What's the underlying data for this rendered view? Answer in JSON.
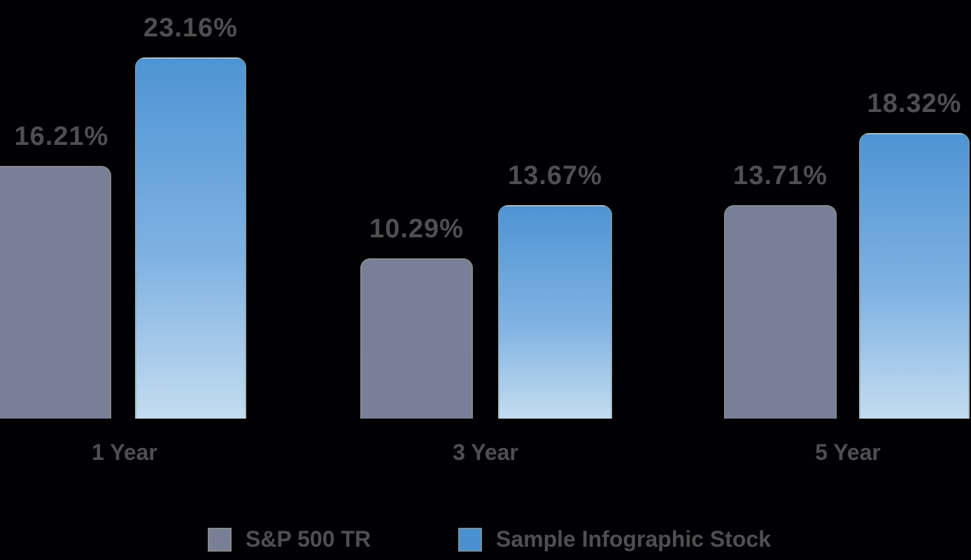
{
  "chart_data": {
    "type": "bar",
    "title": "",
    "xlabel": "",
    "ylabel": "",
    "categories": [
      "1 Year",
      "3 Year",
      "5 Year"
    ],
    "series": [
      {
        "name": "S&P 500 TR",
        "color": "#797F97",
        "values": [
          16.21,
          10.29,
          13.71
        ],
        "labels": [
          "16.21%",
          "10.29%",
          "13.71%"
        ]
      },
      {
        "name": "Sample Infographic Stock",
        "color_top": "#4E94D4",
        "color_bottom": "#C3DCF0",
        "values": [
          23.16,
          13.67,
          18.32
        ],
        "labels": [
          "23.16%",
          "13.67%",
          "18.32%"
        ]
      }
    ],
    "ylim": [
      0,
      25
    ],
    "grid": false,
    "axis_lines": false,
    "legend_position": "bottom",
    "value_labels_shown": true,
    "value_label_color": "#4F4F51",
    "background_color": "#010104"
  },
  "legend": {
    "items": [
      {
        "label": "S&P 500 TR",
        "swatch_color": "#797F97"
      },
      {
        "label": "Sample Infographic Stock",
        "swatch_color": "#4A90D0"
      }
    ]
  }
}
